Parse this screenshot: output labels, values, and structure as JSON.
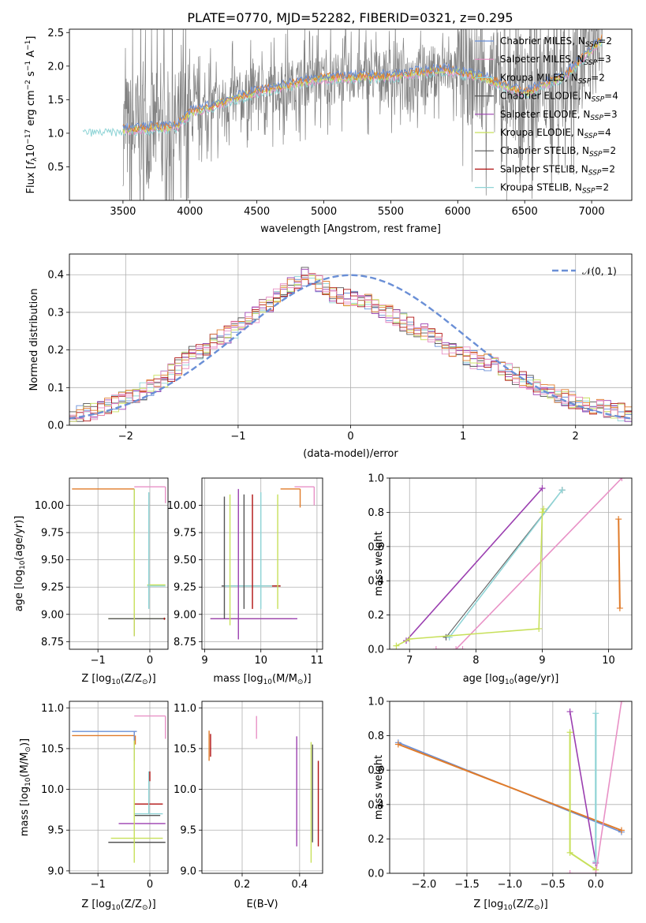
{
  "figure_title": "PLATE=0770, MJD=52282, FIBERID=0321, z=0.295",
  "colors": {
    "Chabrier MILES": "#6a8fd6",
    "Salpeter MILES": "#e891c6",
    "Kroupa MILES": "#8fd4d6",
    "Chabrier ELODIE": "#555555",
    "Salpeter ELODIE": "#9b3fb0",
    "Kroupa ELODIE": "#c7e05a",
    "Chabrier STELIB": "#555555",
    "Salpeter STELIB": "#b01010",
    "Kroupa STELIB": "#8fd4d6",
    "orange": "#e07b2a",
    "data": "#808080"
  },
  "chart_data": [
    {
      "type": "line",
      "title": "PLATE=0770, MJD=52282, FIBERID=0321, z=0.295",
      "xlabel": "wavelength [Angstrom, rest frame]",
      "ylabel_main": "Flux [",
      "ylabel_f": "f",
      "ylabel_sub": "λ",
      "ylabel_rest": "10",
      "ylabel_exp1": "−17",
      "ylabel_mid": " erg cm",
      "ylabel_exp2": "−2",
      "ylabel_s": " s",
      "ylabel_exp3": "−1",
      "ylabel_end": " A",
      "ylabel_exp4": "−1",
      "ylabel_close": "]",
      "xlim": [
        3100,
        7300
      ],
      "ylim": [
        0.0,
        2.55
      ],
      "xticks": [
        "3500",
        "4000",
        "4500",
        "5000",
        "5500",
        "6000",
        "6500",
        "7000"
      ],
      "xtick_values": [
        3500,
        4000,
        4500,
        5000,
        5500,
        6000,
        6500,
        7000
      ],
      "yticks": [
        "0.5",
        "1.0",
        "1.5",
        "2.0",
        "2.5"
      ],
      "ytick_values": [
        0.5,
        1.0,
        1.5,
        2.0,
        2.5
      ],
      "model_knots": [
        [
          3200,
          1.05
        ],
        [
          3500,
          1.05
        ],
        [
          3900,
          1.1
        ],
        [
          4000,
          1.3
        ],
        [
          4500,
          1.62
        ],
        [
          5000,
          1.82
        ],
        [
          5500,
          1.85
        ],
        [
          5900,
          1.95
        ],
        [
          6200,
          1.82
        ],
        [
          6500,
          1.6
        ],
        [
          6800,
          1.85
        ],
        [
          7100,
          2.45
        ]
      ],
      "legend": [
        {
          "name": "Chabrier MILES, N",
          "sub": "SSP",
          "tail": "=2"
        },
        {
          "name": "Salpeter MILES, N",
          "sub": "SSP",
          "tail": "=3"
        },
        {
          "name": "Kroupa MILES, N",
          "sub": "SSP",
          "tail": "=2"
        },
        {
          "name": "Chabrier ELODIE, N",
          "sub": "SSP",
          "tail": "=4"
        },
        {
          "name": "Salpeter ELODIE, N",
          "sub": "SSP",
          "tail": "=3"
        },
        {
          "name": "Kroupa ELODIE, N",
          "sub": "SSP",
          "tail": "=4"
        },
        {
          "name": "Chabrier STELIB, N",
          "sub": "SSP",
          "tail": "=2"
        },
        {
          "name": "Salpeter STELIB, N",
          "sub": "SSP",
          "tail": "=2"
        },
        {
          "name": "Kroupa STELIB, N",
          "sub": "SSP",
          "tail": "=2"
        }
      ]
    },
    {
      "type": "line",
      "xlabel": "(data-model)/error",
      "ylabel": "Normed distribution",
      "xlim": [
        -2.5,
        2.5
      ],
      "ylim": [
        0.0,
        0.455
      ],
      "xticks": [
        "−2",
        "−1",
        "0",
        "1",
        "2"
      ],
      "xtick_values": [
        -2,
        -1,
        0,
        1,
        2
      ],
      "yticks": [
        "0.0",
        "0.1",
        "0.2",
        "0.3",
        "0.4"
      ],
      "ytick_values": [
        0.0,
        0.1,
        0.2,
        0.3,
        0.4
      ],
      "legend": [
        {
          "name": "𝒩(0, 1)"
        }
      ],
      "gaussian": {
        "mean": 0,
        "sigma": 1
      },
      "hist_bin_width": 0.1,
      "hist_base": [
        0.025,
        0.028,
        0.033,
        0.038,
        0.043,
        0.05,
        0.058,
        0.065,
        0.072,
        0.08,
        0.088,
        0.098,
        0.11,
        0.125,
        0.14,
        0.155,
        0.17,
        0.185,
        0.198,
        0.21,
        0.222,
        0.232,
        0.242,
        0.255,
        0.268,
        0.282,
        0.295,
        0.31,
        0.325,
        0.34,
        0.355,
        0.37,
        0.385,
        0.395,
        0.385,
        0.375,
        0.36,
        0.35,
        0.345,
        0.34,
        0.335,
        0.33,
        0.325,
        0.315,
        0.305,
        0.295,
        0.285,
        0.275,
        0.265,
        0.255,
        0.245,
        0.235,
        0.225,
        0.21,
        0.2,
        0.195,
        0.185,
        0.175,
        0.17,
        0.165,
        0.16,
        0.15,
        0.14,
        0.13,
        0.12,
        0.11,
        0.1,
        0.095,
        0.09,
        0.082,
        0.075,
        0.068,
        0.062,
        0.057,
        0.052,
        0.047,
        0.042,
        0.038,
        0.034,
        0.03
      ]
    },
    {
      "type": "scatter",
      "name": "age-vs-Z",
      "xlabel": "Z [log",
      "xlabel_sub": "10",
      "xlabel_rest": "(Z/Z",
      "xlabel_sun": "⊙",
      "xlabel_close": ")]",
      "ylabel": "age  [log",
      "ylabel_sub": "10",
      "ylabel_rest": "(age/yr)]",
      "xlim": [
        -1.55,
        0.35
      ],
      "ylim": [
        8.68,
        10.25
      ],
      "xticks": [
        "−1",
        "0"
      ],
      "xtick_values": [
        -1,
        0
      ],
      "yticks": [
        "8.75",
        "9.00",
        "9.25",
        "9.50",
        "9.75",
        "10.00"
      ],
      "ytick_values": [
        8.75,
        9.0,
        9.25,
        9.5,
        9.75,
        10.0
      ],
      "hsegs": [
        {
          "c": "orange",
          "x0": -1.5,
          "x1": -0.3,
          "y": 10.15
        },
        {
          "c": "Salpeter MILES",
          "x0": -0.3,
          "x1": 0.3,
          "y": 10.17
        },
        {
          "c": "Kroupa MILES",
          "x0": -0.05,
          "x1": 0.3,
          "y": 9.26
        },
        {
          "c": "Kroupa ELODIE",
          "x0": -0.05,
          "x1": 0.3,
          "y": 9.27
        },
        {
          "c": "Kroupa ELODIE",
          "x0": -0.8,
          "x1": 0.3,
          "y": 8.96
        },
        {
          "c": "Chabrier ELODIE",
          "x0": -0.8,
          "x1": 0.3,
          "y": 8.96
        }
      ],
      "vsegs": [
        {
          "c": "Chabrier MILES",
          "x": -0.3,
          "y0": 9.75,
          "y1": 10.15
        },
        {
          "c": "Salpeter ELODIE",
          "x": -0.3,
          "y0": 8.8,
          "y1": 9.0
        },
        {
          "c": "Kroupa ELODIE",
          "x": -0.3,
          "y0": 8.8,
          "y1": 10.15
        },
        {
          "c": "Kroupa MILES",
          "x": -0.02,
          "y0": 9.05,
          "y1": 10.12
        },
        {
          "c": "Salpeter MILES",
          "x": 0.3,
          "y0": 10.02,
          "y1": 10.17
        },
        {
          "c": "Salpeter STELIB",
          "x": 0.28,
          "y0": 8.95,
          "y1": 8.97
        }
      ]
    },
    {
      "type": "scatter",
      "name": "age-vs-mass",
      "xlabel": "mass [log",
      "xlabel_sub": "10",
      "xlabel_rest": "(M/M",
      "xlabel_sun": "⊙",
      "xlabel_close": ")]",
      "xlim": [
        8.95,
        11.1
      ],
      "ylim": [
        8.68,
        10.25
      ],
      "xticks": [
        "9",
        "10",
        "11"
      ],
      "xtick_values": [
        9,
        10,
        11
      ],
      "yticks": [
        "8.75",
        "9.00",
        "9.25",
        "9.50",
        "9.75",
        "10.00"
      ],
      "ytick_values": [
        8.75,
        9.0,
        9.25,
        9.5,
        9.75,
        10.0
      ],
      "hsegs": [
        {
          "c": "orange",
          "x0": 10.35,
          "x1": 10.7,
          "y": 10.15
        },
        {
          "c": "Salpeter MILES",
          "x0": 10.6,
          "x1": 10.95,
          "y": 10.17
        },
        {
          "c": "Chabrier ELODIE",
          "x0": 9.3,
          "x1": 10.35,
          "y": 9.26
        },
        {
          "c": "Kroupa MILES",
          "x0": 9.35,
          "x1": 10.25,
          "y": 9.26
        },
        {
          "c": "Salpeter STELIB",
          "x0": 10.2,
          "x1": 10.35,
          "y": 9.26
        },
        {
          "c": "Kroupa ELODIE",
          "x0": 9.1,
          "x1": 10.55,
          "y": 8.96
        },
        {
          "c": "Salpeter ELODIE",
          "x0": 9.1,
          "x1": 10.65,
          "y": 8.96
        }
      ],
      "vsegs": [
        {
          "c": "Chabrier ELODIE",
          "x": 9.35,
          "y0": 8.96,
          "y1": 10.08
        },
        {
          "c": "Kroupa ELODIE",
          "x": 9.45,
          "y0": 8.9,
          "y1": 10.1
        },
        {
          "c": "Salpeter ELODIE",
          "x": 9.6,
          "y0": 8.77,
          "y1": 10.15
        },
        {
          "c": "Chabrier STELIB",
          "x": 9.7,
          "y0": 9.05,
          "y1": 10.1
        },
        {
          "c": "Salpeter STELIB",
          "x": 9.85,
          "y0": 9.05,
          "y1": 10.1
        },
        {
          "c": "Kroupa MILES",
          "x": 10.0,
          "y0": 9.05,
          "y1": 10.12
        },
        {
          "c": "Kroupa ELODIE",
          "x": 10.3,
          "y0": 9.05,
          "y1": 10.1
        },
        {
          "c": "orange",
          "x": 10.7,
          "y0": 9.98,
          "y1": 10.15
        },
        {
          "c": "Salpeter MILES",
          "x": 10.95,
          "y0": 10.0,
          "y1": 10.17
        }
      ]
    },
    {
      "type": "line",
      "name": "mass-weight-vs-age",
      "xlabel": "age  [log",
      "xlabel_sub": "10",
      "xlabel_rest": "(age/yr)]",
      "ylabel": "mass weight",
      "xlim": [
        6.7,
        10.35
      ],
      "ylim": [
        0.0,
        1.0
      ],
      "xticks": [
        "7",
        "8",
        "9",
        "10"
      ],
      "xtick_values": [
        7,
        8,
        9,
        10
      ],
      "yticks": [
        "0.0",
        "0.2",
        "0.4",
        "0.6",
        "0.8",
        "1.0"
      ],
      "ytick_values": [
        0.0,
        0.2,
        0.4,
        0.6,
        0.8,
        1.0
      ],
      "series": [
        {
          "c": "Salpeter ELODIE",
          "w": 1.6,
          "pts": [
            [
              6.95,
              0.05
            ],
            [
              9.0,
              0.94
            ]
          ]
        },
        {
          "c": "Chabrier ELODIE",
          "w": 1.0,
          "pts": [
            [
              7.55,
              0.07
            ],
            [
              9.3,
              0.93
            ]
          ]
        },
        {
          "c": "Kroupa MILES",
          "w": 1.6,
          "pts": [
            [
              7.6,
              0.07
            ],
            [
              9.3,
              0.93
            ]
          ]
        },
        {
          "c": "Salpeter MILES",
          "w": 1.6,
          "pts": [
            [
              7.7,
              0.0
            ],
            [
              10.2,
              1.0
            ]
          ]
        },
        {
          "c": "Kroupa ELODIE",
          "w": 1.6,
          "pts": [
            [
              6.8,
              0.02
            ],
            [
              7.0,
              0.06
            ],
            [
              8.95,
              0.12
            ],
            [
              9.0,
              0.8
            ],
            [
              9.02,
              0.82
            ]
          ]
        },
        {
          "c": "orange",
          "w": 2.0,
          "pts": [
            [
              10.15,
              0.76
            ],
            [
              10.17,
              0.24
            ]
          ]
        },
        {
          "c": "Salpeter MILES",
          "w": 1.2,
          "pts": [
            [
              7.4,
              0.0
            ],
            [
              7.8,
              0.0
            ]
          ]
        }
      ]
    },
    {
      "type": "scatter",
      "name": "mass-vs-Z",
      "xlabel": "Z [log",
      "xlabel_sub": "10",
      "xlabel_rest": "(Z/Z",
      "xlabel_sun": "⊙",
      "xlabel_close": ")]",
      "ylabel": "mass [log",
      "ylabel_sub": "10",
      "ylabel_rest": "(M/M",
      "ylabel_sun": "⊙",
      "ylabel_close": ")]",
      "xlim": [
        -1.55,
        0.35
      ],
      "ylim": [
        8.97,
        11.08
      ],
      "xticks": [
        "−1",
        "0"
      ],
      "xtick_values": [
        -1,
        0
      ],
      "yticks": [
        "9.0",
        "9.5",
        "10.0",
        "10.5",
        "11.0"
      ],
      "ytick_values": [
        9.0,
        9.5,
        10.0,
        10.5,
        11.0
      ],
      "hsegs": [
        {
          "c": "Chabrier MILES",
          "x0": -1.5,
          "x1": -0.25,
          "y": 10.71
        },
        {
          "c": "orange",
          "x0": -1.5,
          "x1": -0.3,
          "y": 10.66
        },
        {
          "c": "Salpeter MILES",
          "x0": -0.3,
          "x1": 0.3,
          "y": 10.9
        },
        {
          "c": "Salpeter STELIB",
          "x0": -0.3,
          "x1": 0.25,
          "y": 9.82
        },
        {
          "c": "Kroupa MILES",
          "x0": -0.3,
          "x1": 0.25,
          "y": 9.7
        },
        {
          "c": "Chabrier STELIB",
          "x0": -0.3,
          "x1": 0.2,
          "y": 9.68
        },
        {
          "c": "Salpeter ELODIE",
          "x0": -0.6,
          "x1": 0.3,
          "y": 9.58
        },
        {
          "c": "Kroupa ELODIE",
          "x0": -0.75,
          "x1": 0.25,
          "y": 9.4
        },
        {
          "c": "Chabrier ELODIE",
          "x0": -0.8,
          "x1": 0.3,
          "y": 9.35
        }
      ],
      "vsegs": [
        {
          "c": "Chabrier MILES",
          "x": -0.3,
          "y0": 10.35,
          "y1": 10.71
        },
        {
          "c": "orange",
          "x": -0.28,
          "y0": 10.55,
          "y1": 10.66
        },
        {
          "c": "Kroupa ELODIE",
          "x": -0.3,
          "y0": 9.1,
          "y1": 10.6
        },
        {
          "c": "Kroupa MILES",
          "x": -0.02,
          "y0": 9.7,
          "y1": 10.22
        },
        {
          "c": "Salpeter STELIB",
          "x": 0.0,
          "y0": 10.1,
          "y1": 10.22
        },
        {
          "c": "Salpeter MILES",
          "x": 0.3,
          "y0": 10.62,
          "y1": 10.9
        }
      ]
    },
    {
      "type": "scatter",
      "name": "mass-vs-EBV",
      "xlabel": "E(B-V)",
      "xlim": [
        0.06,
        0.48
      ],
      "ylim": [
        8.97,
        11.08
      ],
      "xticks": [
        "0.2",
        "0.4"
      ],
      "xtick_values": [
        0.2,
        0.4
      ],
      "yticks": [
        "9.0",
        "9.5",
        "10.0",
        "10.5",
        "11.0"
      ],
      "ytick_values": [
        9.0,
        9.5,
        10.0,
        10.5,
        11.0
      ],
      "vsegs": [
        {
          "c": "orange",
          "x": 0.085,
          "y0": 10.35,
          "y1": 10.72
        },
        {
          "c": "Salpeter STELIB",
          "x": 0.09,
          "y0": 10.4,
          "y1": 10.68
        },
        {
          "c": "Salpeter MILES",
          "x": 0.25,
          "y0": 10.62,
          "y1": 10.9
        },
        {
          "c": "Salpeter ELODIE",
          "x": 0.39,
          "y0": 9.3,
          "y1": 10.65
        },
        {
          "c": "Kroupa ELODIE",
          "x": 0.44,
          "y0": 9.1,
          "y1": 10.58
        },
        {
          "c": "Chabrier ELODIE",
          "x": 0.445,
          "y0": 9.35,
          "y1": 10.55
        },
        {
          "c": "Salpeter STELIB",
          "x": 0.465,
          "y0": 9.3,
          "y1": 10.35
        }
      ]
    },
    {
      "type": "line",
      "name": "mass-weight-vs-Z",
      "xlabel": "Z [log",
      "xlabel_sub": "10",
      "xlabel_rest": "(Z/Z",
      "xlabel_sun": "⊙",
      "xlabel_close": ")]",
      "ylabel": "mass weight",
      "xlim": [
        -2.4,
        0.42
      ],
      "ylim": [
        0.0,
        1.0
      ],
      "xticks": [
        "−2.0",
        "−1.5",
        "−1.0",
        "−0.5",
        "0.0"
      ],
      "xtick_values": [
        -2.0,
        -1.5,
        -1.0,
        -0.5,
        0.0
      ],
      "yticks": [
        "0.0",
        "0.2",
        "0.4",
        "0.6",
        "0.8",
        "1.0"
      ],
      "ytick_values": [
        0.0,
        0.2,
        0.4,
        0.6,
        0.8,
        1.0
      ],
      "series": [
        {
          "c": "Chabrier MILES",
          "w": 1.6,
          "pts": [
            [
              -2.3,
              0.76
            ],
            [
              0.3,
              0.24
            ]
          ]
        },
        {
          "c": "orange",
          "w": 2.0,
          "pts": [
            [
              -2.3,
              0.75
            ],
            [
              0.3,
              0.25
            ]
          ]
        },
        {
          "c": "Salpeter ELODIE",
          "w": 1.6,
          "pts": [
            [
              -0.3,
              0.94
            ],
            [
              0.0,
              0.06
            ]
          ]
        },
        {
          "c": "Kroupa MILES",
          "w": 2.2,
          "pts": [
            [
              0.0,
              0.07
            ],
            [
              0.0,
              0.93
            ]
          ]
        },
        {
          "c": "Salpeter MILES",
          "w": 1.6,
          "pts": [
            [
              0.0,
              0.0
            ],
            [
              0.3,
              1.0
            ]
          ]
        },
        {
          "c": "Kroupa ELODIE",
          "w": 2.0,
          "pts": [
            [
              -0.3,
              0.82
            ],
            [
              -0.3,
              0.12
            ],
            [
              0.0,
              0.02
            ]
          ]
        },
        {
          "c": "Salpeter MILES",
          "w": 1.2,
          "pts": [
            [
              -0.3,
              0.0
            ],
            [
              0.0,
              0.0
            ]
          ]
        }
      ]
    }
  ]
}
